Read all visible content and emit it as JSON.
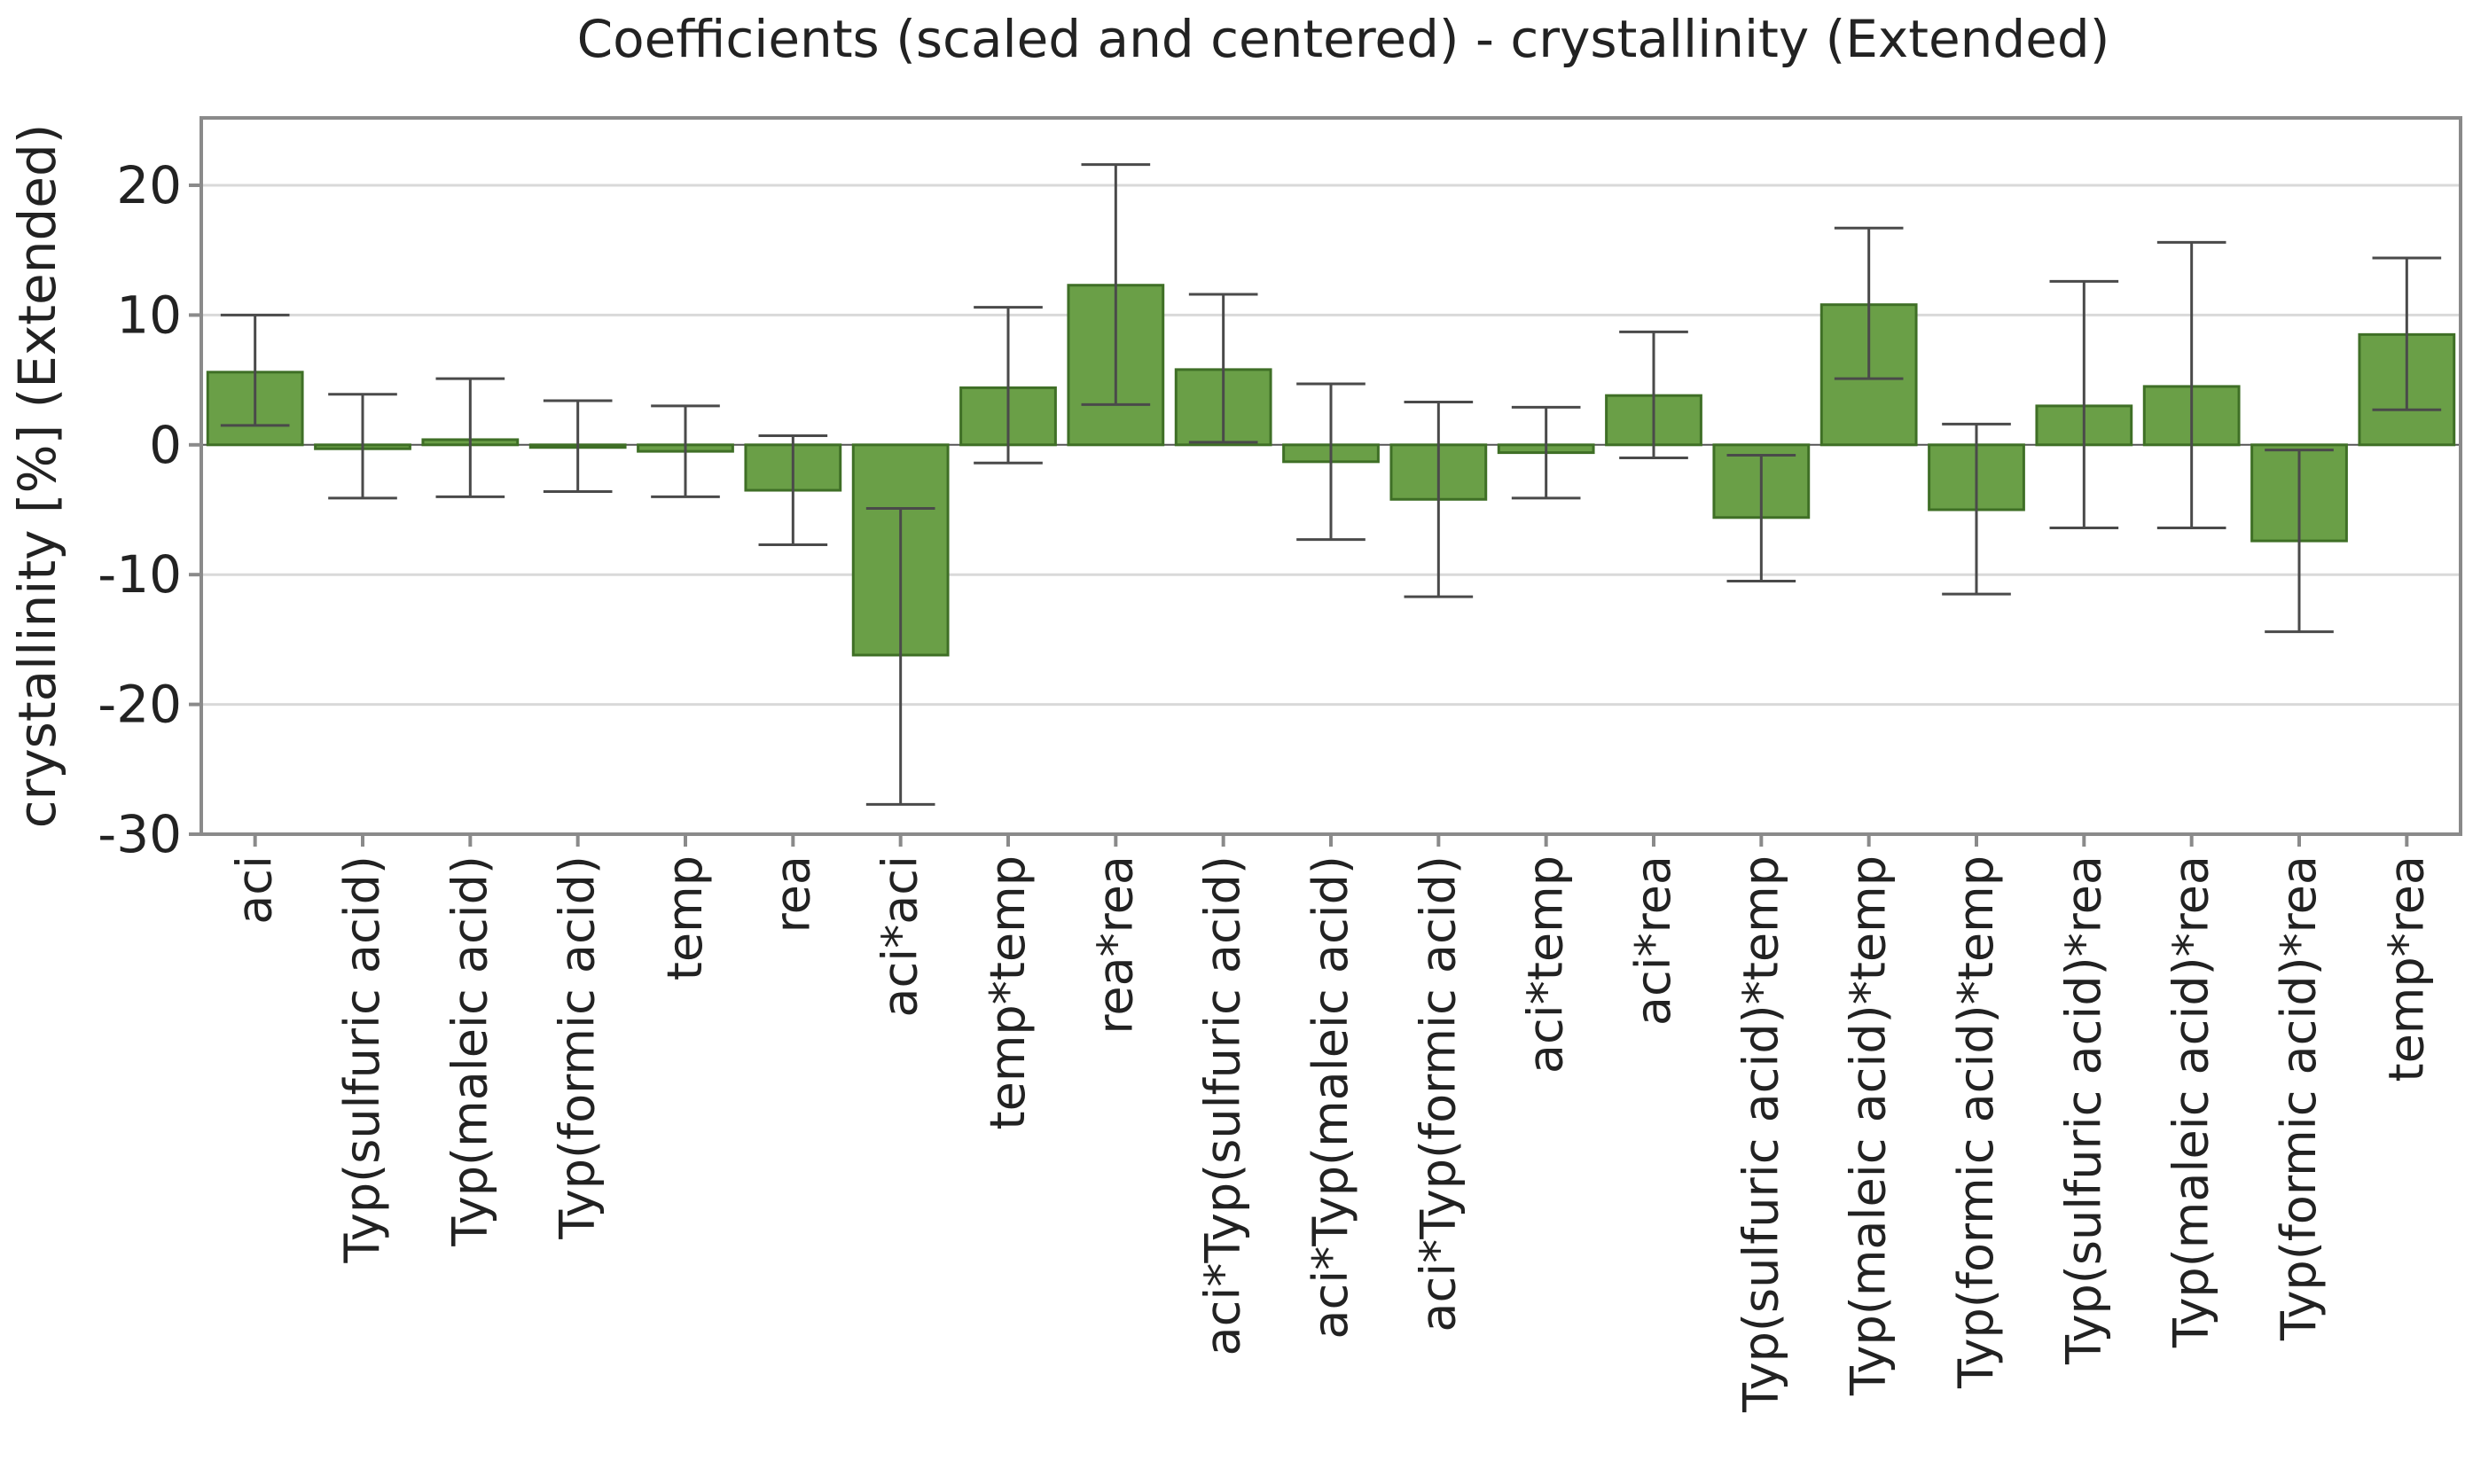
{
  "chart_data": {
    "type": "bar",
    "title": "Coefficients (scaled and centered) - crystallinity (Extended)",
    "xlabel": "",
    "ylabel": "crystallinity [%] (Extended)",
    "ylim": [
      -30,
      25
    ],
    "yticks": [
      20,
      10,
      0,
      -10,
      -20,
      -30
    ],
    "grid": true,
    "bar_color": "#6a9f47",
    "bar_edge_color": "#3f6f26",
    "categories": [
      "aci",
      "Typ(sulfuric acid)",
      "Typ(maleic acid)",
      "Typ(formic acid)",
      "temp",
      "rea",
      "aci*aci",
      "temp*temp",
      "rea*rea",
      "aci*Typ(sulfuric acid)",
      "aci*Typ(maleic acid)",
      "aci*Typ(formic acid)",
      "aci*temp",
      "aci*rea",
      "Typ(sulfuric acid)*temp",
      "Typ(maleic acid)*temp",
      "Typ(formic acid)*temp",
      "Typ(sulfuric acid)*rea",
      "Typ(maleic acid)*rea",
      "Typ(formic acid)*rea",
      "temp*rea"
    ],
    "values": [
      5.6,
      -0.3,
      0.4,
      -0.2,
      -0.5,
      -3.5,
      -16.2,
      4.4,
      12.3,
      5.8,
      -1.3,
      -4.2,
      -0.6,
      3.8,
      -5.6,
      10.8,
      -5.0,
      3.0,
      4.5,
      -7.4,
      8.5
    ],
    "error_low": [
      1.5,
      -4.1,
      -4.0,
      -3.6,
      -4.0,
      -7.7,
      -27.7,
      -1.4,
      3.1,
      0.2,
      -7.3,
      -11.7,
      -4.1,
      -1.0,
      -10.5,
      5.1,
      -11.5,
      -6.4,
      -6.4,
      -14.4,
      2.7
    ],
    "error_high": [
      10.0,
      3.9,
      5.1,
      3.4,
      3.0,
      0.7,
      -4.9,
      10.6,
      21.6,
      11.6,
      4.7,
      3.3,
      2.9,
      8.7,
      -0.8,
      16.7,
      1.6,
      12.6,
      15.6,
      -0.4,
      14.4
    ]
  }
}
